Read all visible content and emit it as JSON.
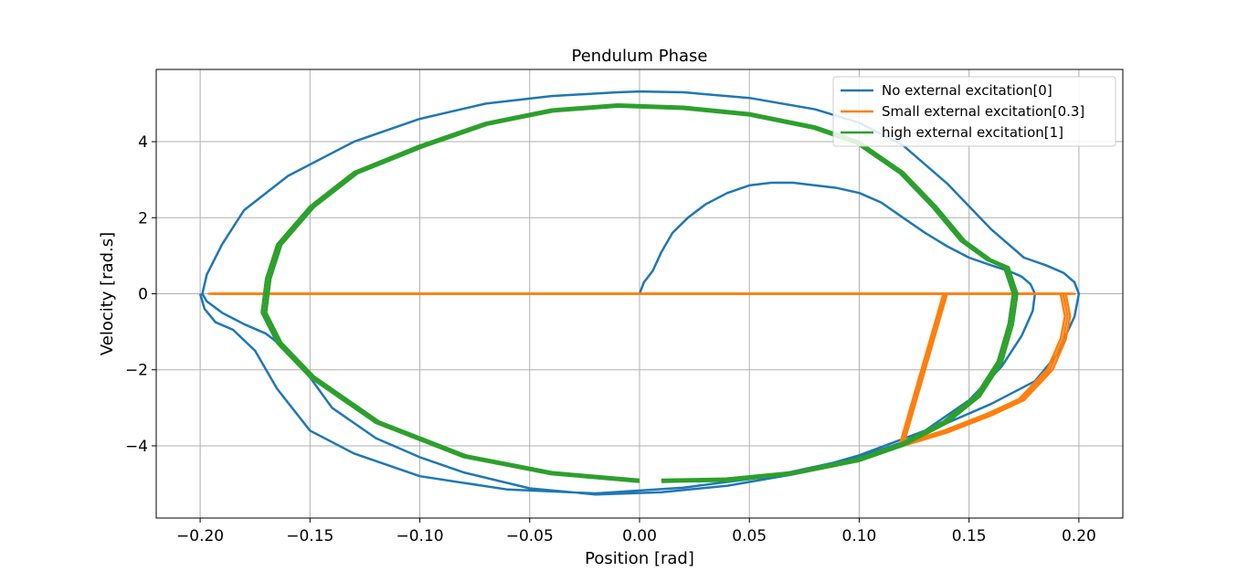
{
  "chart_data": {
    "type": "line",
    "title": "Pendulum Phase",
    "xlabel": "Position [rad]",
    "ylabel": "Velocity [rad.s]",
    "xlim": [
      -0.22,
      0.22
    ],
    "ylim": [
      -5.9,
      5.9
    ],
    "xticks": [
      -0.2,
      -0.15,
      -0.1,
      -0.05,
      0.0,
      0.05,
      0.1,
      0.15,
      0.2
    ],
    "xtick_labels": [
      "−0.20",
      "−0.15",
      "−0.10",
      "−0.05",
      "0.00",
      "0.05",
      "0.10",
      "0.15",
      "0.20"
    ],
    "yticks": [
      -4,
      -2,
      0,
      2,
      4
    ],
    "ytick_labels": [
      "−4",
      "−2",
      "0",
      "2",
      "4"
    ],
    "grid": true,
    "legend_position": "top-right",
    "series": [
      {
        "name": "No external excitation[0]",
        "color": "#1f77b4",
        "loops": 1,
        "x": [
          0.0,
          0.002,
          0.006,
          0.01,
          0.015,
          0.022,
          0.03,
          0.04,
          0.05,
          0.06,
          0.07,
          0.08,
          0.09,
          0.1,
          0.11,
          0.12,
          0.13,
          0.14,
          0.15,
          0.16,
          0.168,
          0.174,
          0.178,
          0.18,
          0.179,
          0.174,
          0.165,
          0.15,
          0.13,
          0.1,
          0.07,
          0.04,
          0.01,
          -0.02,
          -0.05,
          -0.08,
          -0.1,
          -0.12,
          -0.14,
          -0.15,
          -0.16,
          -0.17,
          -0.18,
          -0.19,
          -0.197,
          -0.199,
          -0.197,
          -0.19,
          -0.18,
          -0.16,
          -0.13,
          -0.1,
          -0.07,
          -0.04,
          -0.01,
          0.0,
          0.02,
          0.05,
          0.08,
          0.1,
          0.12,
          0.14,
          0.16,
          0.175,
          0.185,
          0.193,
          0.198,
          0.2,
          0.198,
          0.19,
          0.18,
          0.16,
          0.14,
          0.12,
          0.1,
          0.06,
          0.02,
          -0.02,
          -0.06,
          -0.1,
          -0.13,
          -0.15,
          -0.165,
          -0.175,
          -0.185,
          -0.193,
          -0.198,
          -0.2
        ],
        "y": [
          0.0,
          0.3,
          0.6,
          1.1,
          1.6,
          2.0,
          2.35,
          2.65,
          2.85,
          2.92,
          2.92,
          2.85,
          2.78,
          2.65,
          2.4,
          2.0,
          1.6,
          1.25,
          0.95,
          0.75,
          0.6,
          0.45,
          0.25,
          0.0,
          -0.45,
          -1.1,
          -1.9,
          -2.8,
          -3.6,
          -4.25,
          -4.75,
          -5.05,
          -5.22,
          -5.28,
          -5.12,
          -4.7,
          -4.3,
          -3.8,
          -3.0,
          -2.2,
          -1.5,
          -1.05,
          -0.8,
          -0.5,
          -0.2,
          0.0,
          0.5,
          1.3,
          2.2,
          3.1,
          4.0,
          4.6,
          5.0,
          5.2,
          5.3,
          5.32,
          5.3,
          5.15,
          4.85,
          4.5,
          3.9,
          2.9,
          1.7,
          0.95,
          0.75,
          0.55,
          0.3,
          0.0,
          -0.6,
          -1.6,
          -2.3,
          -2.9,
          -3.4,
          -3.9,
          -4.3,
          -4.8,
          -5.1,
          -5.25,
          -5.15,
          -4.8,
          -4.2,
          -3.6,
          -2.5,
          -1.5,
          -0.95,
          -0.75,
          -0.4,
          0.0
        ]
      },
      {
        "name": "Small external excitation[0.3]",
        "color": "#ff7f0e",
        "loops": 3,
        "x": [
          0.12,
          0.14,
          0.16,
          0.175,
          0.188,
          0.194,
          0.196,
          0.194,
          0.185,
          0.17,
          0.16,
          0.14,
          0.12,
          0.1,
          0.06,
          0.02,
          -0.02,
          -0.06,
          -0.1,
          -0.13,
          -0.15,
          -0.165,
          -0.175,
          -0.185,
          -0.192,
          -0.196,
          -0.194,
          -0.19,
          -0.18,
          -0.16,
          -0.13,
          -0.1,
          -0.07,
          -0.04,
          -0.01,
          0.02,
          0.05,
          0.08,
          0.1,
          0.12,
          0.14,
          0.16,
          0.175,
          0.185,
          0.193,
          0.197,
          0.198,
          0.194,
          0.185,
          0.17,
          0.16,
          0.14,
          0.12
        ],
        "y": [
          -4.0,
          -3.65,
          -3.2,
          -2.8,
          -2.0,
          -1.2,
          -0.6,
          0.0,
          0.0,
          0.0,
          0.0,
          0.0,
          0.0,
          0.0,
          0.0,
          0.0,
          0.0,
          0.0,
          0.0,
          0.0,
          0.0,
          0.0,
          0.0,
          0.0,
          0.0,
          0.0,
          0.0,
          0.0,
          0.0,
          0.0,
          0.0,
          0.0,
          0.0,
          0.0,
          0.0,
          0.0,
          0.0,
          0.0,
          0.0,
          0.0,
          0.0,
          0.0,
          0.0,
          0.0,
          0.0,
          0.0,
          0.0,
          0.0,
          0.0,
          0.0,
          0.0,
          0.0,
          -4.0
        ]
      },
      {
        "name": "high external excitation[1]",
        "color": "#2ca02c",
        "loops": 3,
        "x": [
          0.0,
          -0.04,
          -0.08,
          -0.12,
          -0.15,
          -0.165,
          -0.172,
          -0.17,
          -0.165,
          -0.15,
          -0.13,
          -0.1,
          -0.07,
          -0.04,
          -0.01,
          0.02,
          0.05,
          0.08,
          0.1,
          0.12,
          0.135,
          0.148,
          0.16,
          0.168,
          0.172,
          0.17,
          0.165,
          0.155,
          0.14,
          0.12,
          0.1,
          0.07,
          0.04,
          0.01
        ],
        "y": [
          -4.95,
          -4.75,
          -4.3,
          -3.4,
          -2.2,
          -1.3,
          -0.5,
          0.4,
          1.3,
          2.3,
          3.2,
          3.9,
          4.5,
          4.85,
          4.98,
          4.92,
          4.75,
          4.4,
          4.0,
          3.2,
          2.3,
          1.4,
          0.9,
          0.7,
          0.0,
          -0.8,
          -1.8,
          -2.7,
          -3.4,
          -4.0,
          -4.4,
          -4.75,
          -4.92,
          -4.95
        ]
      }
    ]
  }
}
